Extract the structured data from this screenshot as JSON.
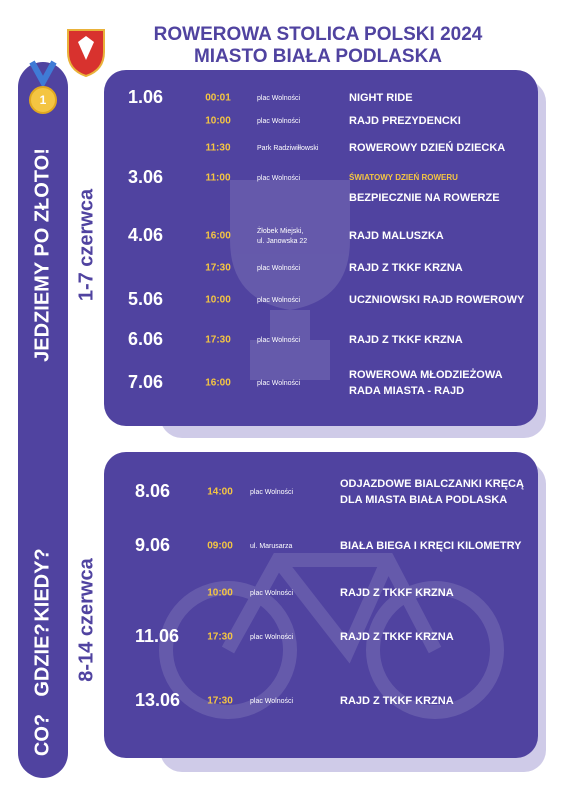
{
  "header": {
    "title_lines": [
      "ROWEROWA STOLICA POLSKI 2024",
      "MIASTO BIAŁA PODLASKA"
    ]
  },
  "sidebar": [
    "CO?",
    "GDZIE?",
    "KIEDY?",
    "JEDZIEMY PO ZŁOTO!"
  ],
  "panels": [
    {
      "period": "1-7 czerwca",
      "rows": [
        {
          "date": "1.06",
          "time": "00:01",
          "place": [
            "plac Wolności"
          ],
          "event": [
            "NIGHT RIDE"
          ]
        },
        {
          "time": "10:00",
          "place": [
            "plac Wolności"
          ],
          "event": [
            "RAJD  PREZYDENCKI"
          ]
        },
        {
          "time": "11:30",
          "place": [
            "Park Radziwiłłowski"
          ],
          "event": [
            "ROWEROWY DZIEŃ DZIECKA"
          ]
        },
        {
          "date": "3.06",
          "time": "11:00",
          "place": [
            "plac Wolności"
          ],
          "note": "ŚWIATOWY DZIEŃ ROWERU",
          "event": [
            "BEZPIECZNIE NA ROWERZE"
          ]
        },
        {
          "date": "4.06",
          "time": "16:00",
          "place": [
            "Żłobek Miejski,",
            "ul. Janowska 22"
          ],
          "event": [
            "RAJD  MALUSZKA"
          ]
        },
        {
          "time": "17:30",
          "place": [
            "plac Wolności"
          ],
          "event": [
            "RAJD  Z TKKF KRZNA"
          ]
        },
        {
          "date": "5.06",
          "time": "10:00",
          "place": [
            "plac Wolności"
          ],
          "event": [
            "UCZNIOWSKI RAJD ROWEROWY"
          ]
        },
        {
          "date": "6.06",
          "time": "17:30",
          "place": [
            "plac Wolności"
          ],
          "event": [
            "RAJD  Z TKKF KRZNA"
          ]
        },
        {
          "date": "7.06",
          "time": "16:00",
          "place": [
            "plac Wolności"
          ],
          "event": [
            "ROWEROWA MŁODZIEŻOWA",
            "RADA MIASTA - RAJD"
          ]
        }
      ]
    },
    {
      "period": "8-14 czerwca",
      "rows": [
        {
          "date": "8.06",
          "time": "14:00",
          "place": [
            "plac Wolności"
          ],
          "event": [
            "ODJAZDOWE BIALCZANKI KRĘCĄ",
            "DLA MIASTA BIAŁA PODLASKA"
          ]
        },
        {
          "date": "9.06",
          "time": "09:00",
          "place": [
            "ul. Marusarza"
          ],
          "event": [
            "BIAŁA BIEGA I KRĘCI KILOMETRY"
          ]
        },
        {
          "time": "10:00",
          "place": [
            "plac Wolności"
          ],
          "event": [
            "RAJD  Z TKKF KRZNA"
          ]
        },
        {
          "date": "11.06",
          "time": "17:30",
          "place": [
            "plac Wolności"
          ],
          "event": [
            "RAJD Z TKKF KRZNA"
          ]
        },
        {
          "date": "13.06",
          "time": "17:30",
          "place": [
            "plac Wolności"
          ],
          "event": [
            "RAJD  Z TKKF KRZNA"
          ]
        }
      ]
    }
  ]
}
